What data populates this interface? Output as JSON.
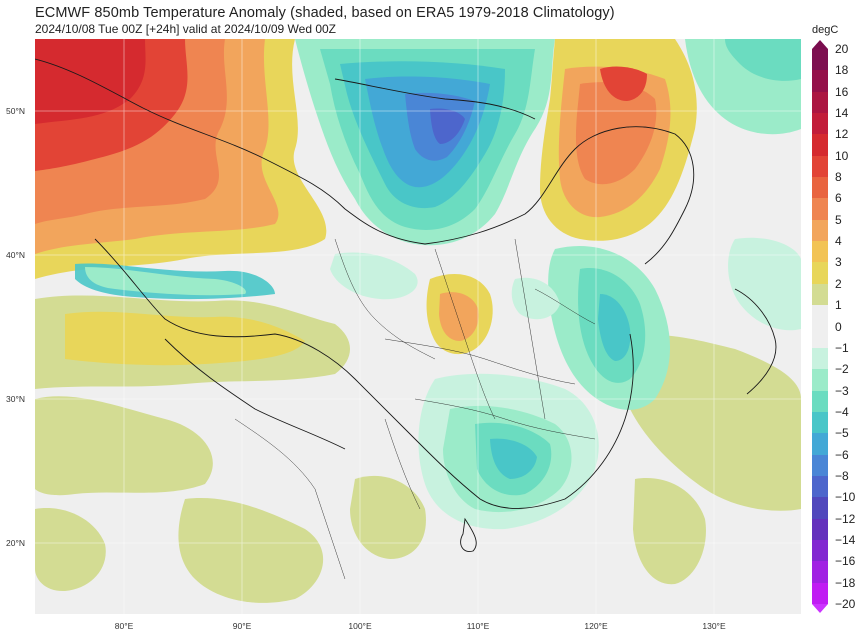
{
  "title": "ECMWF 850mb Temperature Anomaly (shaded, based on ERA5 1979-2018 Climatology)",
  "subtitle": "2024/10/08 Tue 00Z [+24h] valid at 2024/10/09 Wed 00Z",
  "map": {
    "lat_labels": [
      "50°N",
      "40°N",
      "30°N",
      "20°N"
    ],
    "lon_labels": [
      "80°E",
      "90°E",
      "100°E",
      "110°E",
      "120°E",
      "130°E"
    ]
  },
  "colorbar": {
    "unit": "degC",
    "labels": [
      "20",
      "18",
      "16",
      "14",
      "12",
      "10",
      "8",
      "6",
      "5",
      "4",
      "3",
      "2",
      "1",
      "0",
      "−1",
      "−2",
      "−3",
      "−4",
      "−5",
      "−6",
      "−8",
      "−10",
      "−12",
      "−14",
      "−16",
      "−18",
      "−20"
    ],
    "colors": [
      "#7d0f50",
      "#951049",
      "#ac1642",
      "#c21d3a",
      "#d52a2f",
      "#e24436",
      "#e9643f",
      "#ef8551",
      "#f2a55c",
      "#f2c355",
      "#e8d65a",
      "#d3dc93",
      "#efefef",
      "#efefef",
      "#c8f2df",
      "#9bebc9",
      "#6bdcc0",
      "#49c6c8",
      "#43a8d6",
      "#4a86d6",
      "#4d66cc",
      "#5148bd",
      "#6431bd",
      "#8227d1",
      "#a121e3",
      "#c01cf3"
    ]
  }
}
